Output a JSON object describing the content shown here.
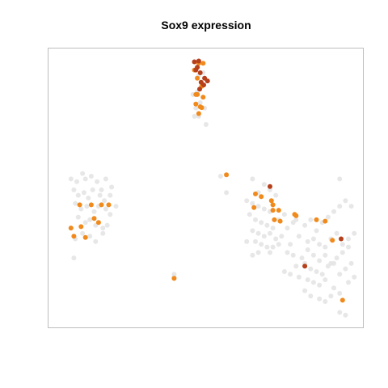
{
  "chart_data": {
    "type": "scatter",
    "title": "Sox9 expression",
    "xlabel": "",
    "ylabel": "",
    "axes_visible": false,
    "grid": false,
    "legend": "none",
    "xlim": [
      0,
      100
    ],
    "ylim": [
      0,
      100
    ],
    "colors": {
      "background_points": "#e4e4e4",
      "medium": "#f08a1c",
      "high": "#b5401b",
      "frame": "#bdbdbd"
    },
    "series": [
      {
        "level": "none",
        "points": [
          [
            5.5,
            53
          ],
          [
            7.5,
            52
          ],
          [
            9.5,
            55
          ],
          [
            10.5,
            53
          ],
          [
            12.5,
            54
          ],
          [
            14.5,
            52
          ],
          [
            16,
            49
          ],
          [
            17.5,
            53
          ],
          [
            19.5,
            50
          ],
          [
            6.5,
            49
          ],
          [
            8,
            47
          ],
          [
            10,
            48
          ],
          [
            11.5,
            46
          ],
          [
            13,
            49
          ],
          [
            15.5,
            47
          ],
          [
            17,
            45
          ],
          [
            19,
            47
          ],
          [
            7,
            44
          ],
          [
            9,
            42
          ],
          [
            11,
            43
          ],
          [
            13.5,
            41
          ],
          [
            15,
            43
          ],
          [
            17.5,
            42
          ],
          [
            19,
            40
          ],
          [
            21,
            43
          ],
          [
            8,
            39
          ],
          [
            10.5,
            37
          ],
          [
            12,
            38
          ],
          [
            14,
            36
          ],
          [
            16.5,
            35
          ],
          [
            18,
            36
          ],
          [
            7,
            31
          ],
          [
            9.5,
            33
          ],
          [
            12,
            32
          ],
          [
            14,
            30
          ],
          [
            16.5,
            33
          ],
          [
            6.5,
            24
          ],
          [
            41,
            18
          ],
          [
            41,
            17
          ],
          [
            41,
            16.5
          ],
          [
            49,
            94
          ],
          [
            49.5,
            91
          ],
          [
            50.5,
            88
          ],
          [
            49,
            85
          ],
          [
            50,
            81
          ],
          [
            48.5,
            79
          ],
          [
            51.5,
            79
          ],
          [
            48,
            76
          ],
          [
            49.5,
            76
          ],
          [
            52,
            73
          ],
          [
            47.5,
            84
          ],
          [
            51,
            92
          ],
          [
            57,
            54
          ],
          [
            59,
            48
          ],
          [
            68,
            53
          ],
          [
            70,
            48
          ],
          [
            72,
            51
          ],
          [
            74,
            49
          ],
          [
            76,
            47
          ],
          [
            66,
            45
          ],
          [
            68,
            44
          ],
          [
            70,
            43
          ],
          [
            72,
            42
          ],
          [
            74,
            41
          ],
          [
            67,
            40
          ],
          [
            69,
            38
          ],
          [
            71,
            37
          ],
          [
            73,
            36
          ],
          [
            75,
            35
          ],
          [
            77,
            38
          ],
          [
            79,
            40
          ],
          [
            68,
            34
          ],
          [
            70,
            33
          ],
          [
            72,
            32
          ],
          [
            74,
            33
          ],
          [
            76,
            31
          ],
          [
            78,
            32
          ],
          [
            80,
            35
          ],
          [
            82,
            37
          ],
          [
            66,
            30
          ],
          [
            69,
            30
          ],
          [
            71,
            29
          ],
          [
            73,
            28
          ],
          [
            75,
            28
          ],
          [
            77,
            29
          ],
          [
            70,
            26
          ],
          [
            74,
            26
          ],
          [
            68,
            25
          ],
          [
            81,
            29
          ],
          [
            83,
            38
          ],
          [
            86,
            36
          ],
          [
            88,
            38
          ],
          [
            90,
            34
          ],
          [
            92,
            37
          ],
          [
            94,
            39
          ],
          [
            96,
            41
          ],
          [
            98,
            43
          ],
          [
            100,
            45
          ],
          [
            102,
            43
          ],
          [
            84,
            32
          ],
          [
            87,
            30
          ],
          [
            89,
            31
          ],
          [
            91,
            29
          ],
          [
            93,
            28
          ],
          [
            95,
            31
          ],
          [
            97,
            33
          ],
          [
            99,
            29
          ],
          [
            101,
            31
          ],
          [
            103,
            33
          ],
          [
            80,
            26
          ],
          [
            82,
            25
          ],
          [
            85,
            24
          ],
          [
            87,
            27
          ],
          [
            89,
            25
          ],
          [
            91,
            23
          ],
          [
            93,
            25
          ],
          [
            95,
            22
          ],
          [
            97,
            24
          ],
          [
            99,
            26
          ],
          [
            101,
            28
          ],
          [
            83,
            21
          ],
          [
            86,
            22
          ],
          [
            88,
            20
          ],
          [
            90,
            19
          ],
          [
            92,
            18
          ],
          [
            94,
            21
          ],
          [
            96,
            22
          ],
          [
            98,
            18
          ],
          [
            100,
            20
          ],
          [
            79,
            19
          ],
          [
            81,
            18
          ],
          [
            84,
            17
          ],
          [
            87,
            16
          ],
          [
            89,
            15
          ],
          [
            91,
            14
          ],
          [
            93,
            16
          ],
          [
            96,
            13
          ],
          [
            98,
            11
          ],
          [
            101,
            15
          ],
          [
            103,
            17
          ],
          [
            102,
            22
          ],
          [
            86,
            12
          ],
          [
            88,
            10
          ],
          [
            91,
            9
          ],
          [
            93,
            8
          ],
          [
            95,
            10
          ],
          [
            98,
            4
          ],
          [
            100,
            3
          ],
          [
            98,
            53
          ]
        ]
      },
      {
        "level": "medium",
        "points": [
          [
            8.5,
            43.5
          ],
          [
            12.5,
            43.5
          ],
          [
            16,
            43.5
          ],
          [
            18.5,
            43.5
          ],
          [
            13.5,
            38.5
          ],
          [
            5.5,
            35
          ],
          [
            9,
            35.5
          ],
          [
            15,
            37
          ],
          [
            6.5,
            32
          ],
          [
            10.5,
            31.5
          ],
          [
            41,
            16.5
          ],
          [
            49.5,
            95.5
          ],
          [
            51,
            95.5
          ],
          [
            48,
            93
          ],
          [
            49,
            90
          ],
          [
            50.5,
            87
          ],
          [
            49,
            84
          ],
          [
            51,
            83
          ],
          [
            48.5,
            80.5
          ],
          [
            50,
            79.5
          ],
          [
            49.5,
            77
          ],
          [
            50.5,
            79.2
          ],
          [
            48.5,
            84
          ],
          [
            59,
            54.5
          ],
          [
            69,
            47.5
          ],
          [
            71,
            46.5
          ],
          [
            74.5,
            45
          ],
          [
            75,
            43.5
          ],
          [
            68.5,
            42.5
          ],
          [
            75,
            41.5
          ],
          [
            77,
            41.5
          ],
          [
            82.5,
            40
          ],
          [
            83,
            39.5
          ],
          [
            75.5,
            38
          ],
          [
            77.5,
            37.5
          ],
          [
            90,
            38
          ],
          [
            93,
            37.5
          ],
          [
            95.5,
            30.5
          ],
          [
            99,
            8.5
          ]
        ]
      },
      {
        "level": "high",
        "points": [
          [
            48,
            96
          ],
          [
            49.5,
            96.3
          ],
          [
            49,
            94
          ],
          [
            48.5,
            93
          ],
          [
            50,
            92
          ],
          [
            51.5,
            90
          ],
          [
            50.3,
            88.5
          ],
          [
            49.8,
            86
          ],
          [
            51.2,
            87.5
          ],
          [
            52.5,
            89
          ],
          [
            74,
            50.2
          ],
          [
            86,
            21
          ],
          [
            98.5,
            31
          ]
        ]
      }
    ]
  }
}
